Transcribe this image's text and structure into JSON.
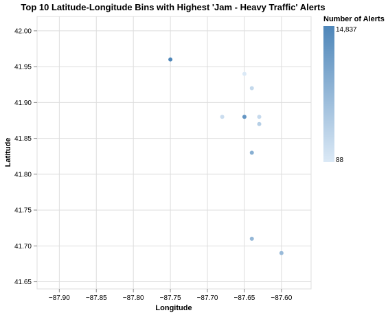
{
  "chart_data": {
    "type": "scatter",
    "title": "Top 10 Latitude-Longitude Bins with Highest 'Jam - Heavy Traffic' Alerts",
    "xlabel": "Longitude",
    "ylabel": "Latitude",
    "xlim": [
      -87.93,
      -87.56
    ],
    "ylim": [
      41.64,
      42.02
    ],
    "xticks": [
      -87.9,
      -87.85,
      -87.8,
      -87.75,
      -87.7,
      -87.65,
      -87.6
    ],
    "xtick_labels": [
      "−87.90",
      "−87.85",
      "−87.80",
      "−87.75",
      "−87.70",
      "−87.65",
      "−87.60"
    ],
    "yticks": [
      41.65,
      41.7,
      41.75,
      41.8,
      41.85,
      41.9,
      41.95,
      42.0
    ],
    "ytick_labels": [
      "41.65",
      "41.70",
      "41.75",
      "41.80",
      "41.85",
      "41.90",
      "41.95",
      "42.00"
    ],
    "grid": true,
    "legend": {
      "title": "Number of Alerts",
      "max_label": "14,837",
      "min_label": "88",
      "placement": "right",
      "color_low": "#dbe9f6",
      "color_high": "#4e86b9"
    },
    "points": [
      {
        "x": -87.75,
        "y": 41.96,
        "value": 14837
      },
      {
        "x": -87.65,
        "y": 41.88,
        "value": 11200
      },
      {
        "x": -87.64,
        "y": 41.83,
        "value": 6200
      },
      {
        "x": -87.64,
        "y": 41.71,
        "value": 4800
      },
      {
        "x": -87.6,
        "y": 41.69,
        "value": 4300
      },
      {
        "x": -87.63,
        "y": 41.87,
        "value": 1700
      },
      {
        "x": -87.63,
        "y": 41.88,
        "value": 700
      },
      {
        "x": -87.68,
        "y": 41.88,
        "value": 500
      },
      {
        "x": -87.64,
        "y": 41.92,
        "value": 800
      },
      {
        "x": -87.65,
        "y": 41.94,
        "value": 88
      }
    ]
  }
}
